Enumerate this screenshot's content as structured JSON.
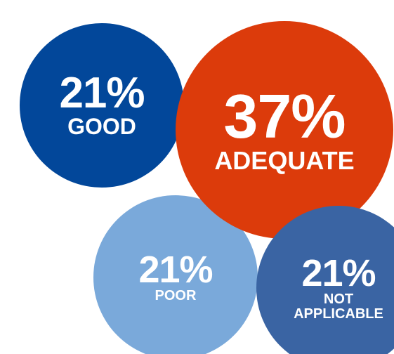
{
  "chart_data": {
    "type": "bubble",
    "categories": [
      "GOOD",
      "ADEQUATE",
      "POOR",
      "NOT APPLICABLE"
    ],
    "values": [
      21,
      37,
      21,
      21
    ],
    "value_labels": [
      "21%",
      "37%",
      "21%",
      "21%"
    ],
    "colors": [
      "#02479a",
      "#dc3b0b",
      "#7aa9da",
      "#3a64a3"
    ]
  }
}
